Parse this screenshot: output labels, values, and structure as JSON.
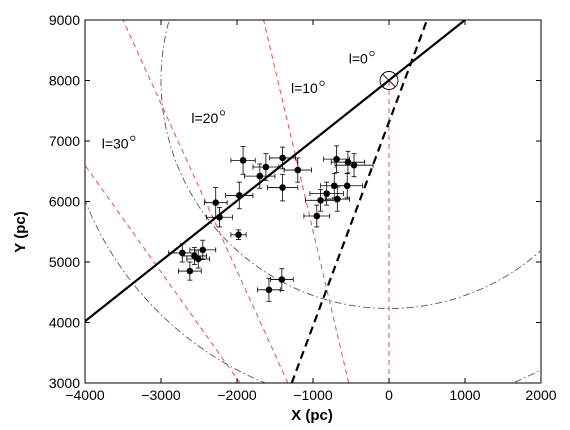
{
  "chart_data": {
    "type": "scatter",
    "xlabel": "X (pc)",
    "ylabel": "Y (pc)",
    "xlim": [
      -4000,
      2000
    ],
    "ylim": [
      3000,
      9000
    ],
    "xticks": [
      "−4000",
      "−3000",
      "−2000",
      "−1000",
      "0",
      "1000",
      "2000"
    ],
    "yticks": [
      "3000",
      "4000",
      "5000",
      "6000",
      "7000",
      "8000",
      "9000"
    ],
    "sun": {
      "x": 0,
      "y": 8000
    },
    "points": [
      {
        "x": -2720,
        "y": 5150,
        "xerr": 180,
        "yerr": 150
      },
      {
        "x": -2620,
        "y": 4850,
        "xerr": 150,
        "yerr": 150
      },
      {
        "x": -2560,
        "y": 5100,
        "xerr": 160,
        "yerr": 140
      },
      {
        "x": -2510,
        "y": 5050,
        "xerr": 150,
        "yerr": 150
      },
      {
        "x": -2450,
        "y": 5200,
        "xerr": 170,
        "yerr": 160
      },
      {
        "x": -2230,
        "y": 5740,
        "xerr": 170,
        "yerr": 160
      },
      {
        "x": -2280,
        "y": 5980,
        "xerr": 150,
        "yerr": 250
      },
      {
        "x": -1980,
        "y": 5450,
        "xerr": 100,
        "yerr": 80
      },
      {
        "x": -1970,
        "y": 6100,
        "xerr": 180,
        "yerr": 220
      },
      {
        "x": -1920,
        "y": 6680,
        "xerr": 160,
        "yerr": 230
      },
      {
        "x": -1700,
        "y": 6420,
        "xerr": 200,
        "yerr": 200
      },
      {
        "x": -1620,
        "y": 6570,
        "xerr": 170,
        "yerr": 220
      },
      {
        "x": -1400,
        "y": 6720,
        "xerr": 170,
        "yerr": 180
      },
      {
        "x": -1200,
        "y": 6520,
        "xerr": 180,
        "yerr": 200
      },
      {
        "x": -1400,
        "y": 6230,
        "xerr": 200,
        "yerr": 220
      },
      {
        "x": -1580,
        "y": 4540,
        "xerr": 150,
        "yerr": 190
      },
      {
        "x": -1410,
        "y": 4710,
        "xerr": 150,
        "yerr": 180
      },
      {
        "x": -950,
        "y": 5760,
        "xerr": 170,
        "yerr": 180
      },
      {
        "x": -900,
        "y": 6020,
        "xerr": 200,
        "yerr": 180
      },
      {
        "x": -820,
        "y": 6130,
        "xerr": 220,
        "yerr": 190
      },
      {
        "x": -680,
        "y": 6040,
        "xerr": 160,
        "yerr": 200
      },
      {
        "x": -720,
        "y": 6260,
        "xerr": 180,
        "yerr": 200
      },
      {
        "x": -690,
        "y": 6700,
        "xerr": 170,
        "yerr": 220
      },
      {
        "x": -540,
        "y": 6650,
        "xerr": 220,
        "yerr": 180
      },
      {
        "x": -550,
        "y": 6260,
        "xerr": 200,
        "yerr": 200
      },
      {
        "x": -460,
        "y": 6600,
        "xerr": 250,
        "yerr": 190
      }
    ],
    "fit_solid": {
      "x0": -4000,
      "y0": 4020,
      "x1": 1000,
      "y1": 9000
    },
    "fit_dashed": {
      "x0": -1280,
      "y0": 3000,
      "x1": 500,
      "y1": 9000
    },
    "longitude_lines": [
      {
        "l": 0,
        "x0": 0,
        "y0": 3000,
        "x1": 0,
        "y1": 8000
      },
      {
        "l": 10,
        "x0": -530,
        "y0": 3000,
        "x1": -1650,
        "y1": 9000
      },
      {
        "l": 20,
        "x0": -1330,
        "y0": 3000,
        "x1": -3500,
        "y1": 9000
      },
      {
        "l": 30,
        "x0": -1960,
        "y0": 3000,
        "x1": -4000,
        "y1": 6600
      }
    ],
    "circles": [
      {
        "cx": 0,
        "cy": 8000,
        "r": 3000
      },
      {
        "cx": 0,
        "cy": 8000,
        "r": 4300
      }
    ],
    "annotations": [
      {
        "text": "l=0",
        "x": -530,
        "y": 8280
      },
      {
        "text": "l=10",
        "x": -1290,
        "y": 7790
      },
      {
        "text": "l=20",
        "x": -2600,
        "y": 7300
      },
      {
        "text": "l=30",
        "x": -3780,
        "y": 6880
      }
    ]
  },
  "colors": {
    "points": "#000000",
    "longitude": "#e05050",
    "circles": "#555555"
  }
}
